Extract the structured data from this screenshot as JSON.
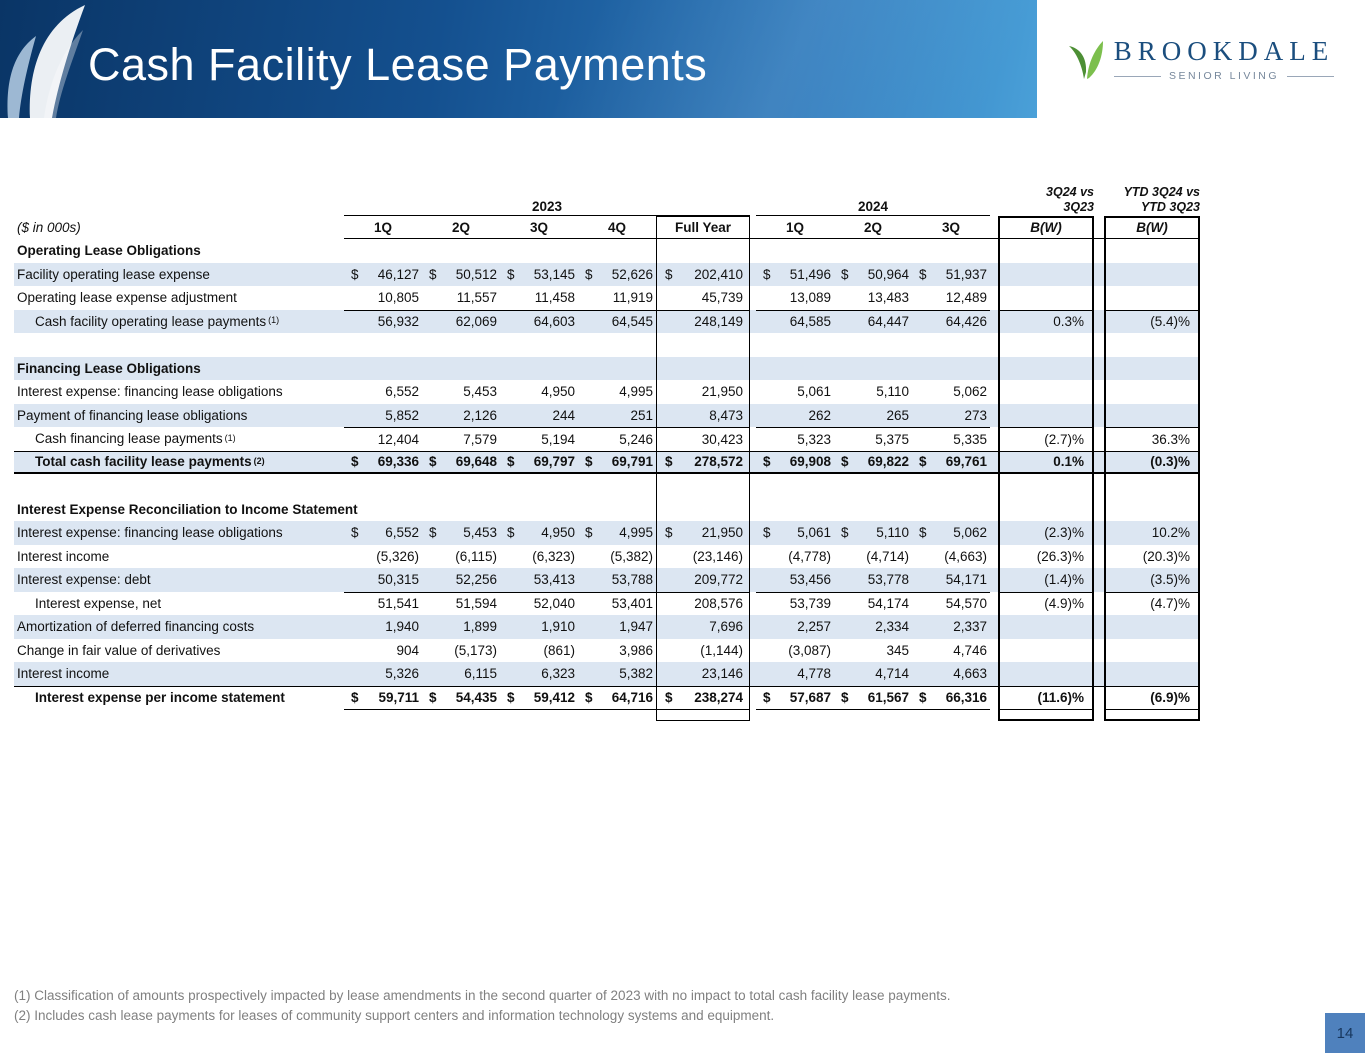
{
  "slide": {
    "title": "Cash Facility Lease Payments",
    "page_number": "14"
  },
  "logo": {
    "name": "BROOKDALE",
    "tagline": "SENIOR LIVING"
  },
  "table": {
    "units_label": "($ in 000s)",
    "groups": {
      "g2023": "2023",
      "g2024": "2024",
      "bw1": [
        "3Q24 vs",
        "3Q23"
      ],
      "bw2": [
        "YTD 3Q24 vs",
        "YTD 3Q23"
      ]
    },
    "columns": {
      "q2023": [
        "1Q",
        "2Q",
        "3Q",
        "4Q"
      ],
      "full_year": "Full Year",
      "q2024": [
        "1Q",
        "2Q",
        "3Q"
      ],
      "bw": "B(W)"
    },
    "rows": [
      {
        "style": "section",
        "label": "Operating Lease Obligations",
        "shaded": false,
        "values": [
          "",
          "",
          "",
          "",
          "",
          "",
          "",
          "",
          "",
          ""
        ]
      },
      {
        "style": "data",
        "label": "Facility operating lease expense",
        "shaded": true,
        "dollar": true,
        "values": [
          "46,127",
          "50,512",
          "53,145",
          "52,626",
          "202,410",
          "51,496",
          "50,964",
          "51,937",
          "",
          ""
        ]
      },
      {
        "style": "data",
        "label": "Operating lease expense adjustment",
        "shaded": false,
        "values": [
          "10,805",
          "11,557",
          "11,458",
          "11,919",
          "45,739",
          "13,089",
          "13,483",
          "12,489",
          "",
          ""
        ]
      },
      {
        "style": "subtotal",
        "label": "Cash facility operating lease payments",
        "sup": "(1)",
        "indent": true,
        "shaded": true,
        "values": [
          "56,932",
          "62,069",
          "64,603",
          "64,545",
          "248,149",
          "64,585",
          "64,447",
          "64,426",
          "0.3%",
          "(5.4)%"
        ]
      },
      {
        "style": "blank",
        "label": "",
        "values": [
          "",
          "",
          "",
          "",
          "",
          "",
          "",
          "",
          "",
          ""
        ]
      },
      {
        "style": "section",
        "label": "Financing Lease Obligations",
        "shaded": true,
        "values": [
          "",
          "",
          "",
          "",
          "",
          "",
          "",
          "",
          "",
          ""
        ]
      },
      {
        "style": "data",
        "label": "Interest expense: financing lease obligations",
        "shaded": false,
        "values": [
          "6,552",
          "5,453",
          "4,950",
          "4,995",
          "21,950",
          "5,061",
          "5,110",
          "5,062",
          "",
          ""
        ]
      },
      {
        "style": "data",
        "label": "Payment of financing lease obligations",
        "shaded": true,
        "values": [
          "5,852",
          "2,126",
          "244",
          "251",
          "8,473",
          "262",
          "265",
          "273",
          "",
          ""
        ]
      },
      {
        "style": "subtotal",
        "label": "Cash financing lease payments",
        "sup": "(1)",
        "indent": true,
        "shaded": false,
        "values": [
          "12,404",
          "7,579",
          "5,194",
          "5,246",
          "30,423",
          "5,323",
          "5,375",
          "5,335",
          "(2.7)%",
          "36.3%"
        ]
      },
      {
        "style": "total",
        "heavy": true,
        "label": "Total cash facility lease payments",
        "sup": "(2)",
        "indent": true,
        "shaded": true,
        "dollar": true,
        "values": [
          "69,336",
          "69,648",
          "69,797",
          "69,791",
          "278,572",
          "69,908",
          "69,822",
          "69,761",
          "0.1%",
          "(0.3)%"
        ]
      },
      {
        "style": "blank",
        "label": "",
        "values": [
          "",
          "",
          "",
          "",
          "",
          "",
          "",
          "",
          "",
          ""
        ]
      },
      {
        "style": "section",
        "label": "Interest Expense Reconciliation to Income Statement",
        "shaded": false,
        "values": [
          "",
          "",
          "",
          "",
          "",
          "",
          "",
          "",
          "",
          ""
        ]
      },
      {
        "style": "data",
        "label": "Interest expense: financing lease obligations",
        "shaded": true,
        "dollar": true,
        "values": [
          "6,552",
          "5,453",
          "4,950",
          "4,995",
          "21,950",
          "5,061",
          "5,110",
          "5,062",
          "(2.3)%",
          "10.2%"
        ]
      },
      {
        "style": "data",
        "label": "Interest income",
        "shaded": false,
        "values": [
          "(5,326)",
          "(6,115)",
          "(6,323)",
          "(5,382)",
          "(23,146)",
          "(4,778)",
          "(4,714)",
          "(4,663)",
          "(26.3)%",
          "(20.3)%"
        ]
      },
      {
        "style": "data",
        "label": "Interest expense: debt",
        "shaded": true,
        "values": [
          "50,315",
          "52,256",
          "53,413",
          "53,788",
          "209,772",
          "53,456",
          "53,778",
          "54,171",
          "(1.4)%",
          "(3.5)%"
        ]
      },
      {
        "style": "subtotal",
        "label": "Interest expense, net",
        "indent": true,
        "shaded": false,
        "values": [
          "51,541",
          "51,594",
          "52,040",
          "53,401",
          "208,576",
          "53,739",
          "54,174",
          "54,570",
          "(4.9)%",
          "(4.7)%"
        ]
      },
      {
        "style": "data",
        "label": "Amortization of deferred financing costs",
        "shaded": true,
        "values": [
          "1,940",
          "1,899",
          "1,910",
          "1,947",
          "7,696",
          "2,257",
          "2,334",
          "2,337",
          "",
          ""
        ]
      },
      {
        "style": "data",
        "label": "Change in fair value of derivatives",
        "shaded": false,
        "values": [
          "904",
          "(5,173)",
          "(861)",
          "3,986",
          "(1,144)",
          "(3,087)",
          "345",
          "4,746",
          "",
          ""
        ]
      },
      {
        "style": "data",
        "label": "Interest income",
        "shaded": true,
        "values": [
          "5,326",
          "6,115",
          "6,323",
          "5,382",
          "23,146",
          "4,778",
          "4,714",
          "4,663",
          "",
          ""
        ]
      },
      {
        "style": "total",
        "label": "Interest expense per income statement",
        "indent": true,
        "shaded": false,
        "dollar": true,
        "values": [
          "59,711",
          "54,435",
          "59,412",
          "64,716",
          "238,274",
          "57,687",
          "61,567",
          "66,316",
          "(11.6)%",
          "(6.9)%"
        ]
      }
    ]
  },
  "footnotes": [
    "(1)  Classification of amounts prospectively impacted by lease amendments in the second quarter of 2023 with no impact to total cash facility lease payments.",
    "(2)  Includes cash lease payments for leases of community support centers and information technology systems and equipment."
  ]
}
